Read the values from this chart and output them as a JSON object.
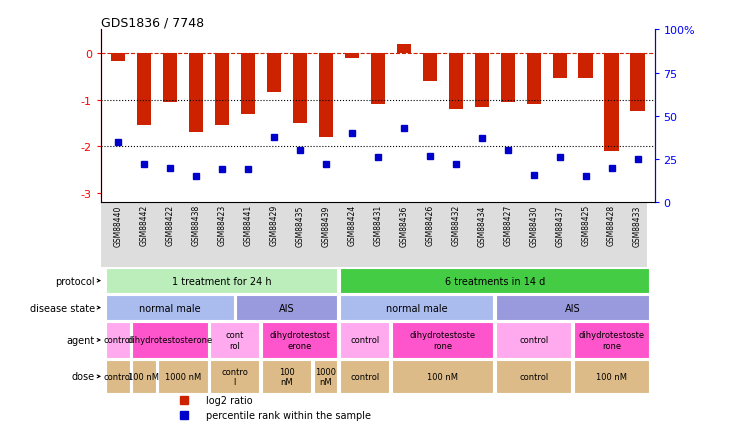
{
  "title": "GDS1836 / 7748",
  "samples": [
    "GSM88440",
    "GSM88442",
    "GSM88422",
    "GSM88438",
    "GSM88423",
    "GSM88441",
    "GSM88429",
    "GSM88435",
    "GSM88439",
    "GSM88424",
    "GSM88431",
    "GSM88436",
    "GSM88426",
    "GSM88432",
    "GSM88434",
    "GSM88427",
    "GSM88430",
    "GSM88437",
    "GSM88425",
    "GSM88428",
    "GSM88433"
  ],
  "log2_ratio": [
    -0.18,
    -1.55,
    -1.05,
    -1.7,
    -1.55,
    -1.3,
    -0.85,
    -1.5,
    -1.8,
    -0.12,
    -1.1,
    0.18,
    -0.6,
    -1.2,
    -1.15,
    -1.05,
    -1.1,
    -0.55,
    -0.55,
    -2.1,
    -1.25
  ],
  "percentile_rank": [
    35,
    22,
    20,
    15,
    19,
    19,
    38,
    30,
    22,
    40,
    26,
    43,
    27,
    22,
    37,
    30,
    16,
    26,
    15,
    20,
    25
  ],
  "ylim_left": [
    -3.2,
    0.5
  ],
  "ylim_right": [
    0,
    100
  ],
  "bar_color": "#cc2200",
  "dot_color": "#0000cc",
  "hline_color": "#cc2200",
  "dotline1": -1.0,
  "dotline2": -2.0,
  "protocol_groups": [
    {
      "label": "1 treatment for 24 h",
      "start": 0,
      "end": 8,
      "color": "#bbeebb"
    },
    {
      "label": "6 treatments in 14 d",
      "start": 9,
      "end": 20,
      "color": "#44cc44"
    }
  ],
  "disease_groups": [
    {
      "label": "normal male",
      "start": 0,
      "end": 4,
      "color": "#aabbee"
    },
    {
      "label": "AIS",
      "start": 5,
      "end": 8,
      "color": "#9999dd"
    },
    {
      "label": "normal male",
      "start": 9,
      "end": 14,
      "color": "#aabbee"
    },
    {
      "label": "AIS",
      "start": 15,
      "end": 20,
      "color": "#9999dd"
    }
  ],
  "agent_groups": [
    {
      "label": "control",
      "start": 0,
      "end": 0,
      "color": "#ffaaee"
    },
    {
      "label": "dihydrotestosterone",
      "start": 1,
      "end": 3,
      "color": "#ff55cc"
    },
    {
      "label": "cont\nrol",
      "start": 4,
      "end": 5,
      "color": "#ffaaee"
    },
    {
      "label": "dihydrotestost\nerone",
      "start": 6,
      "end": 8,
      "color": "#ff55cc"
    },
    {
      "label": "control",
      "start": 9,
      "end": 10,
      "color": "#ffaaee"
    },
    {
      "label": "dihydrotestoste\nrone",
      "start": 11,
      "end": 14,
      "color": "#ff55cc"
    },
    {
      "label": "control",
      "start": 15,
      "end": 17,
      "color": "#ffaaee"
    },
    {
      "label": "dihydrotestoste\nrone",
      "start": 18,
      "end": 20,
      "color": "#ff55cc"
    }
  ],
  "dose_groups": [
    {
      "label": "control",
      "start": 0,
      "end": 0,
      "color": "#ddbb88"
    },
    {
      "label": "100 nM",
      "start": 1,
      "end": 1,
      "color": "#ddbb88"
    },
    {
      "label": "1000 nM",
      "start": 2,
      "end": 3,
      "color": "#ddbb88"
    },
    {
      "label": "contro\nl",
      "start": 4,
      "end": 5,
      "color": "#ddbb88"
    },
    {
      "label": "100\nnM",
      "start": 6,
      "end": 7,
      "color": "#ddbb88"
    },
    {
      "label": "1000\nnM",
      "start": 8,
      "end": 8,
      "color": "#ddbb88"
    },
    {
      "label": "control",
      "start": 9,
      "end": 10,
      "color": "#ddbb88"
    },
    {
      "label": "100 nM",
      "start": 11,
      "end": 14,
      "color": "#ddbb88"
    },
    {
      "label": "control",
      "start": 15,
      "end": 17,
      "color": "#ddbb88"
    },
    {
      "label": "100 nM",
      "start": 18,
      "end": 20,
      "color": "#ddbb88"
    }
  ],
  "row_labels": [
    "protocol",
    "disease state",
    "agent",
    "dose"
  ],
  "right_yticks": [
    0,
    25,
    50,
    75,
    100
  ],
  "right_yticklabels": [
    "0",
    "25",
    "50",
    "75",
    "100%"
  ],
  "left_yticks": [
    0,
    -1,
    -2,
    -3
  ],
  "left_yticklabels": [
    "0",
    "-1",
    "-2",
    "-3"
  ]
}
